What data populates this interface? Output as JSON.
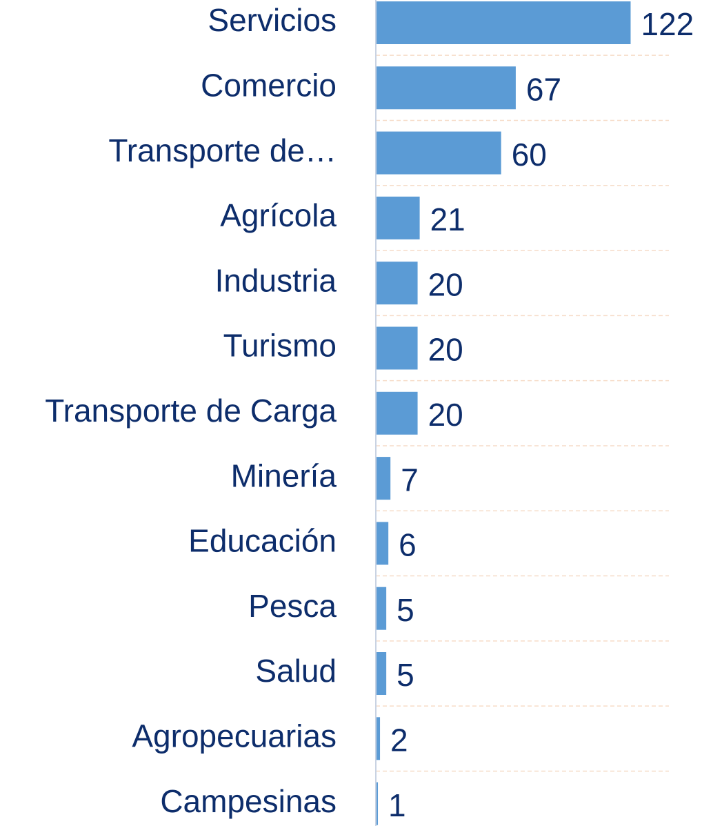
{
  "chart_data": {
    "type": "bar",
    "orientation": "horizontal",
    "categories": [
      "Servicios",
      "Comercio",
      "Transporte de…",
      "Agrícola",
      "Industria",
      "Turismo",
      "Transporte de Carga",
      "Minería",
      "Educación",
      "Pesca",
      "Salud",
      "Agropecuarias",
      "Campesinas"
    ],
    "values": [
      122,
      67,
      60,
      21,
      20,
      20,
      20,
      7,
      6,
      5,
      5,
      2,
      1
    ],
    "color": "#5b9bd5",
    "xlim": [
      0,
      140
    ],
    "grid": true
  }
}
